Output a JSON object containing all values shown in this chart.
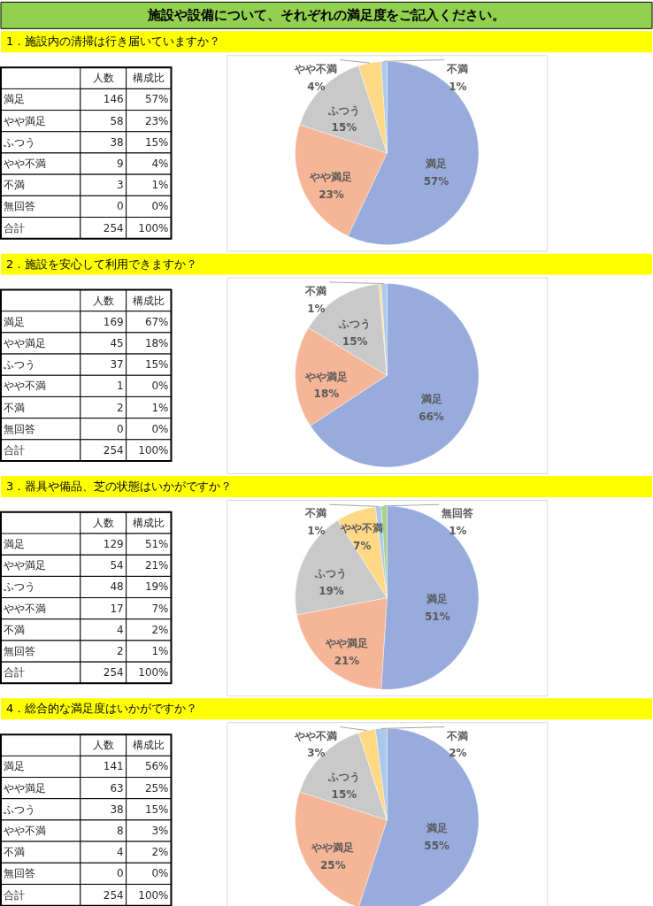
{
  "chart_data": [
    {
      "type": "pie",
      "title": "施設や設備について、それぞれの満足度をご記入ください。",
      "subtitle": "1．施設内の清掃は行き届いていますか？",
      "categories": [
        "満足",
        "やや満足",
        "ふつう",
        "やや不満",
        "不満",
        null
      ],
      "values": [
        57,
        23,
        15,
        4,
        1,
        0
      ],
      "colors": [
        "#97abdc",
        "#f5b597",
        "#c9c9c9",
        "#ffd885",
        "#a9c8ea",
        "#a9d18e"
      ],
      "value_labels": [
        "57%",
        "23%",
        "15%",
        "4%",
        "1%",
        null
      ],
      "annotations": [
        "人数",
        "構成比",
        "満足",
        "146",
        "57%",
        "やや満足",
        "58",
        "23%",
        "ふつう",
        "38",
        "15%",
        "やや不満",
        "9",
        "4%",
        "不満",
        "3",
        "1%",
        "無回答",
        "0",
        "0%",
        "合計",
        "254",
        "100%"
      ]
    },
    {
      "type": "pie",
      "subtitle": "2．施設を安心して利用できますか？",
      "categories": [
        "満足",
        "やや満足",
        "ふつう",
        null,
        "不満",
        null
      ],
      "values": [
        66,
        18,
        15,
        0.4,
        1,
        0
      ],
      "colors": [
        "#97abdc",
        "#f5b597",
        "#c9c9c9",
        "#ffd885",
        "#a9c8ea",
        "#a9d18e"
      ],
      "value_labels": [
        "66%",
        "18%",
        "15%",
        null,
        "1%",
        null
      ],
      "annotations": [
        "人数",
        "構成比",
        "満足",
        "169",
        "67%",
        "やや満足",
        "45",
        "18%",
        "ふつう",
        "37",
        "15%",
        "やや不満",
        "1",
        "0%",
        "不満",
        "2",
        "1%",
        "無回答",
        "0",
        "0%",
        "合計",
        "254",
        "100%"
      ]
    },
    {
      "type": "pie",
      "subtitle": "3．器具や備品、芝の状態はいかがですか？",
      "categories": [
        "満足",
        "やや満足",
        "ふつう",
        "やや不満",
        "不満",
        "無回答"
      ],
      "values": [
        51,
        21,
        19,
        7,
        1,
        1
      ],
      "colors": [
        "#97abdc",
        "#f5b597",
        "#c9c9c9",
        "#ffd885",
        "#a9c8ea",
        "#a9d18e"
      ],
      "value_labels": [
        "51%",
        "21%",
        "19%",
        "7%",
        "1%",
        "1%"
      ],
      "annotations": [
        "人数",
        "構成比",
        "満足",
        "129",
        "51%",
        "やや満足",
        "54",
        "21%",
        "ふつう",
        "48",
        "19%",
        "やや不満",
        "17",
        "7%",
        "不満",
        "4",
        "2%",
        "無回答",
        "2",
        "1%",
        "合計",
        "254",
        "100%"
      ]
    },
    {
      "type": "pie",
      "subtitle": "4．総合的な満足度はいかがですか？",
      "categories": [
        "満足",
        "やや満足",
        "ふつう",
        "やや不満",
        "不満",
        null
      ],
      "values": [
        55,
        25,
        15,
        3,
        2,
        0
      ],
      "colors": [
        "#97abdc",
        "#f5b597",
        "#c9c9c9",
        "#ffd885",
        "#a9c8ea",
        "#a9d18e"
      ],
      "value_labels": [
        "55%",
        "25%",
        "15%",
        "3%",
        "2%",
        null
      ],
      "annotations": [
        "人数",
        "構成比",
        "満足",
        "141",
        "56%",
        "やや満足",
        "63",
        "25%",
        "ふつう",
        "38",
        "15%",
        "やや不満",
        "8",
        "3%",
        "不満",
        "4",
        "2%",
        "無回答",
        "0",
        "0%",
        "合計",
        "254",
        "100%"
      ]
    }
  ]
}
